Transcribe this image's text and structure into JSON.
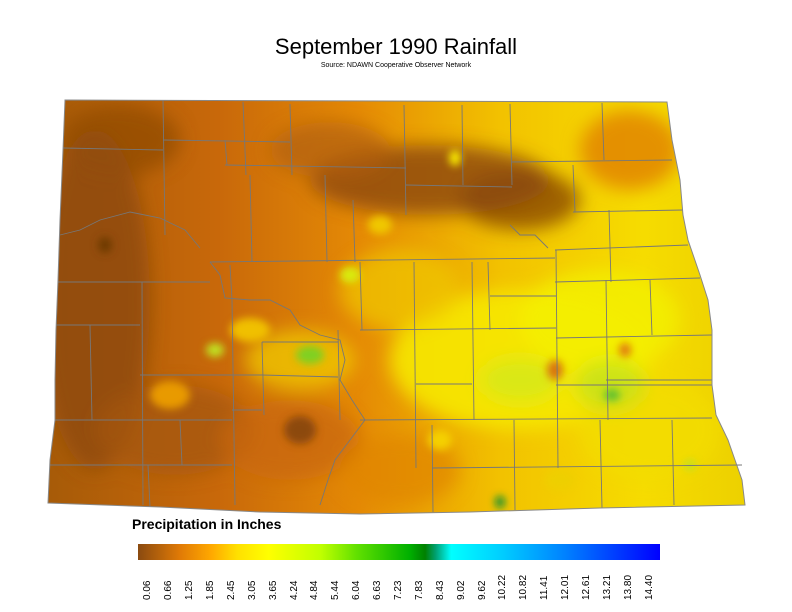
{
  "title": "September 1990 Rainfall",
  "subtitle": "Source: NDAWN Cooperative Observer Network",
  "legend": {
    "title": "Precipitation in Inches",
    "ticks": [
      "0.06",
      "0.66",
      "1.25",
      "1.85",
      "2.45",
      "3.05",
      "3.65",
      "4.24",
      "4.84",
      "5.44",
      "6.04",
      "6.63",
      "7.23",
      "7.83",
      "8.43",
      "9.02",
      "9.62",
      "10.22",
      "10.82",
      "11.41",
      "12.01",
      "12.61",
      "13.21",
      "13.80",
      "14.40"
    ]
  },
  "colors": {
    "dry": "#9a5208",
    "low": "#e07b06",
    "mid": "#f4c400",
    "high": "#ffff00",
    "wet": "#40c020",
    "very_wet": "#00a030",
    "extreme": "#0000ff",
    "county_line": "#7a7a7a"
  }
}
